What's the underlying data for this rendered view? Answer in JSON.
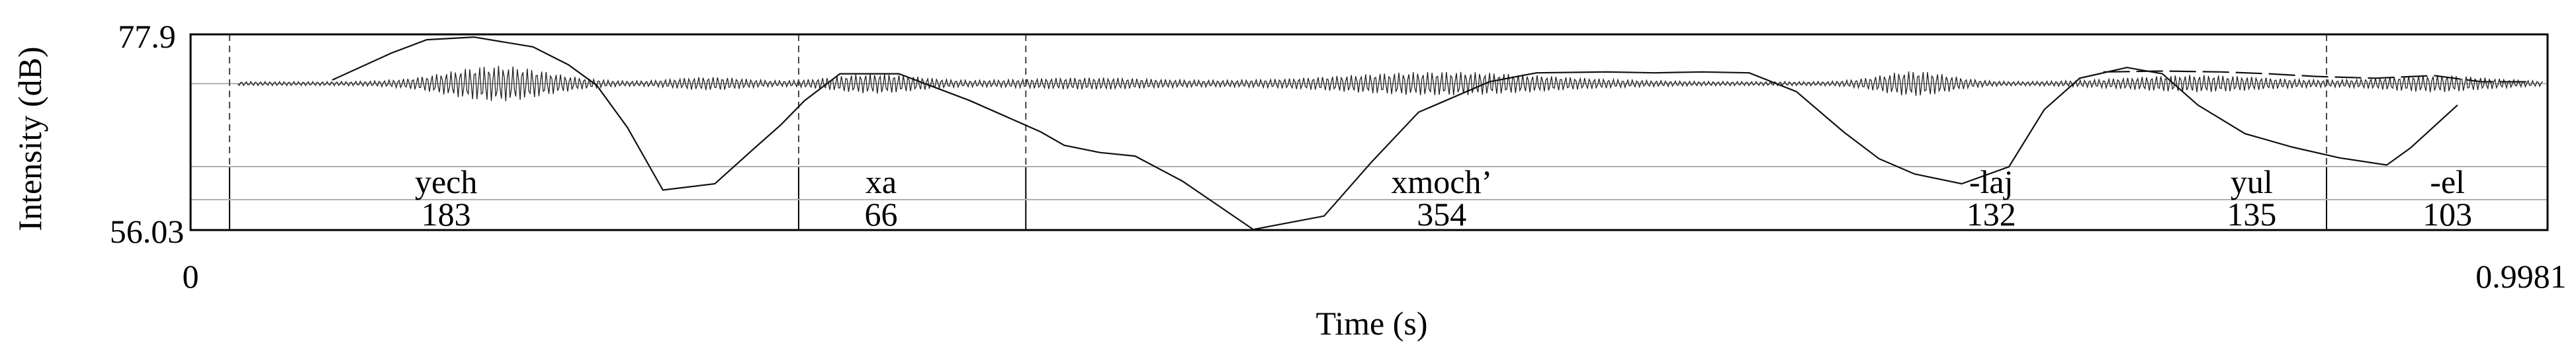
{
  "chart_data": {
    "type": "line",
    "title": "",
    "xlabel": "Time (s)",
    "ylabel": "Intensity (dB)",
    "xlim": [
      0,
      0.9981
    ],
    "ylim": [
      56.03,
      77.9
    ],
    "x_tick_labels": [
      "0",
      "0.9981"
    ],
    "y_tick_labels": [
      "77.9",
      "56.03"
    ],
    "grid": false,
    "series": [
      {
        "values_comment": "intensity contour (dB) vs time (s)",
        "x": [
          0.06,
          0.085,
          0.1,
          0.12,
          0.145,
          0.16,
          0.172,
          0.185,
          0.2,
          0.222,
          0.238,
          0.25,
          0.26,
          0.275,
          0.3,
          0.33,
          0.36,
          0.37,
          0.385,
          0.4,
          0.42,
          0.45,
          0.48,
          0.5,
          0.52,
          0.55,
          0.57,
          0.6,
          0.62,
          0.64,
          0.66,
          0.68,
          0.7,
          0.715,
          0.73,
          0.75,
          0.77,
          0.785,
          0.8,
          0.82,
          0.835,
          0.85,
          0.87,
          0.89,
          0.91,
          0.93,
          0.94,
          0.96
        ],
        "y": [
          72.8,
          75.8,
          77.3,
          77.6,
          76.5,
          74.5,
          72.2,
          67.5,
          60.5,
          61.2,
          65.0,
          67.8,
          70.5,
          73.5,
          73.5,
          70.5,
          67.0,
          65.5,
          64.7,
          64.3,
          61.5,
          56.1,
          57.6,
          63.6,
          69.2,
          72.6,
          73.6,
          73.7,
          73.6,
          73.7,
          73.6,
          71.5,
          67.0,
          64.0,
          62.3,
          61.2,
          63.1,
          69.5,
          73.0,
          74.2,
          73.5,
          70.0,
          66.8,
          65.3,
          64.1,
          63.3,
          65.2,
          70.0
        ]
      },
      {
        "values_comment": "secondary intensity trace (dB) vs time (s)",
        "x": [
          0.81,
          0.835,
          0.86,
          0.88,
          0.9,
          0.925,
          0.95,
          0.97,
          0.99
        ],
        "y": [
          73.7,
          73.8,
          73.7,
          73.5,
          73.2,
          73.0,
          73.3,
          72.6,
          72.6
        ]
      }
    ],
    "reference_line_db": 72.4,
    "boundaries": [
      {
        "x": 0.0165,
        "style": "dashed"
      },
      {
        "x": 0.2575,
        "style": "dashed"
      },
      {
        "x": 0.3537,
        "style": "dashed"
      },
      {
        "x": 0.9045,
        "style": "dashed"
      },
      {
        "x": 0.0165,
        "style": "solid"
      },
      {
        "x": 0.2575,
        "style": "solid"
      },
      {
        "x": 0.3537,
        "style": "solid"
      },
      {
        "x": 0.9045,
        "style": "solid"
      }
    ],
    "annotations": [
      {
        "label": "yech",
        "value": "183",
        "x": 0.1082
      },
      {
        "label": "xa",
        "value": "66",
        "x": 0.2924
      },
      {
        "label": "xmoch’",
        "value": "354",
        "x": 0.5298
      },
      {
        "label": "-laj",
        "value": "132",
        "x": 0.7625
      },
      {
        "label": "yul",
        "value": "135",
        "x": 0.8728
      },
      {
        "label": "-el",
        "value": "103",
        "x": 0.9557
      }
    ]
  }
}
